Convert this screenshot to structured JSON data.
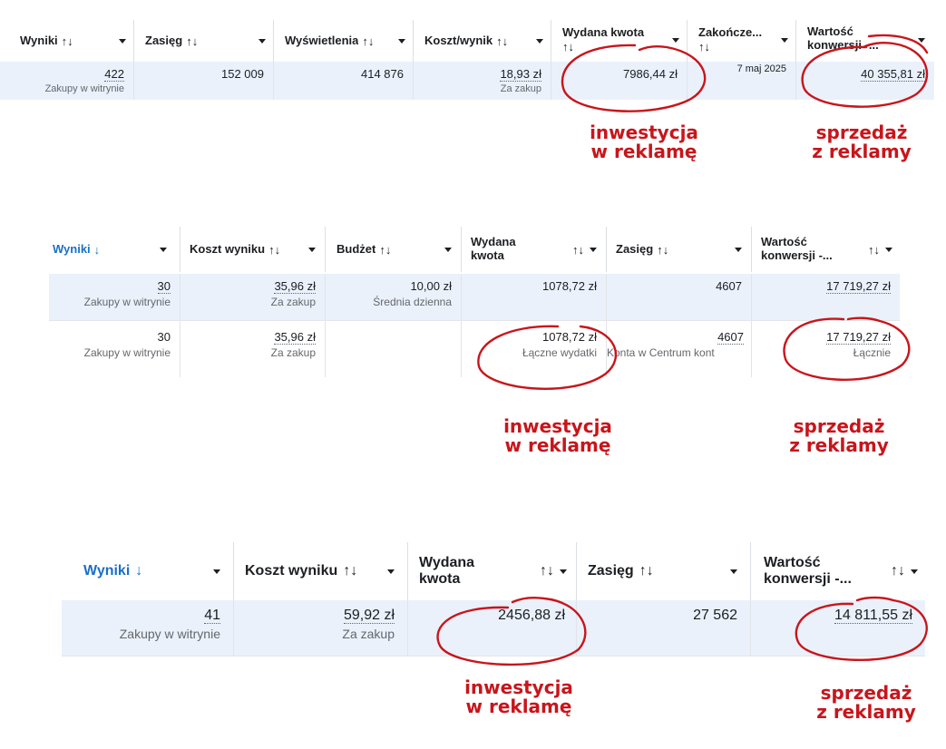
{
  "table1": {
    "headers": [
      {
        "label": "Wyniki",
        "sort": "↑↓"
      },
      {
        "label": "Zasięg",
        "sort": "↑↓"
      },
      {
        "label": "Wyświetlenia",
        "sort": "↑↓"
      },
      {
        "label": "Koszt/wynik",
        "sort": "↑↓"
      },
      {
        "label": "Wydana kwota",
        "sort": "↑↓"
      },
      {
        "label": "Zakończe...",
        "sort": "↑↓"
      },
      {
        "label": "Wartość konwersji -...",
        "sort": ""
      }
    ],
    "row": {
      "results": "422",
      "results_sub": "Zakupy w witrynie",
      "reach": "152 009",
      "impressions": "414 876",
      "cost_per_result": "18,93 zł",
      "cost_sub": "Za zakup",
      "spent": "7986,44 zł",
      "ended": "7 maj 2025",
      "conversion_value": "40 355,81 zł"
    }
  },
  "table2": {
    "headers": [
      {
        "label": "Wyniki",
        "sort": "↓"
      },
      {
        "label": "Koszt wyniku",
        "sort": "↑↓"
      },
      {
        "label": "Budżet",
        "sort": "↑↓"
      },
      {
        "label": "Wydana kwota",
        "sort": "↑↓"
      },
      {
        "label": "Zasięg",
        "sort": "↑↓"
      },
      {
        "label": "Wartość konwersji -...",
        "sort": "↑↓"
      }
    ],
    "rows": [
      {
        "results": "30",
        "results_sub": "Zakupy w witrynie",
        "cost": "35,96 zł",
        "cost_sub": "Za zakup",
        "budget": "10,00 zł",
        "budget_sub": "Średnia dzienna",
        "spent": "1078,72 zł",
        "spent_sub": "",
        "reach": "4607",
        "reach_sub": "",
        "conversion_value": "17 719,27 zł",
        "value_sub": ""
      },
      {
        "results": "30",
        "results_sub": "Zakupy w witrynie",
        "cost": "35,96 zł",
        "cost_sub": "Za zakup",
        "budget": "",
        "budget_sub": "",
        "spent": "1078,72 zł",
        "spent_sub": "Łączne wydatki",
        "reach": "4607",
        "reach_sub": "Konta w Centrum kont",
        "conversion_value": "17 719,27 zł",
        "value_sub": "Łącznie"
      }
    ]
  },
  "table3": {
    "headers": [
      {
        "label": "Wyniki",
        "sort": "↓"
      },
      {
        "label": "Koszt wyniku",
        "sort": "↑↓"
      },
      {
        "label": "Wydana kwota",
        "sort": "↑↓"
      },
      {
        "label": "Zasięg",
        "sort": "↑↓"
      },
      {
        "label": "Wartość konwersji -...",
        "sort": "↑↓"
      }
    ],
    "row": {
      "results": "41",
      "results_sub": "Zakupy w witrynie",
      "cost": "59,92 zł",
      "cost_sub": "Za zakup",
      "spent": "2456,88 zł",
      "reach": "27 562",
      "conversion_value": "14 811,55 zł"
    }
  },
  "annotations": {
    "investment_line1": "inwestycja",
    "investment_line2": "w reklamę",
    "sales_line1": "sprzedaż",
    "sales_line2": "z reklamy"
  },
  "colors": {
    "annotation": "#c8151b",
    "accent": "#1a6fc9",
    "row_highlight": "#eaf1fb"
  }
}
